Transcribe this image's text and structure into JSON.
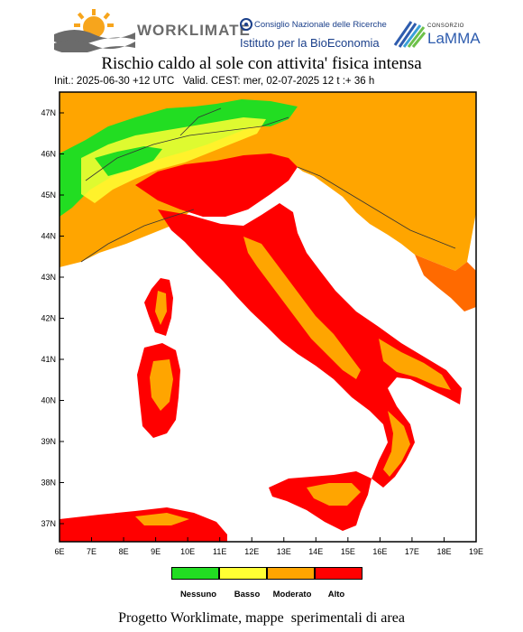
{
  "logos": {
    "worklimate": "WORKLIMATE",
    "cnr_line1": "Consiglio Nazionale delle Ricerche",
    "cnr_line2": "Istituto per la BioEconomia",
    "lamma_small": "CONSORZIO",
    "lamma_big": "LaMMA"
  },
  "header": {
    "title": "Rischio caldo al sole con attivita' fisica intensa",
    "subtitle": "Init.: 2025-06-30 +12 UTC   Valid. CEST: mer, 02-07-2025 12 t :+ 36 h"
  },
  "axes": {
    "lon_labels": [
      "6E",
      "7E",
      "8E",
      "9E",
      "10E",
      "11E",
      "12E",
      "13E",
      "14E",
      "15E",
      "16E",
      "17E",
      "18E",
      "19E"
    ],
    "lat_labels": [
      "47N",
      "46N",
      "45N",
      "44N",
      "43N",
      "42N",
      "41N",
      "40N",
      "39N",
      "38N",
      "37N"
    ]
  },
  "legend": {
    "items": [
      {
        "label": "Nessuno",
        "color": "#22dd22"
      },
      {
        "label": "Basso",
        "color": "#ffff33"
      },
      {
        "label": "Moderato",
        "color": "#ffa500"
      },
      {
        "label": "Alto",
        "color": "#ff0000"
      }
    ]
  },
  "colors": {
    "sea": "#ffffff",
    "frame": "#000000"
  },
  "footer": "Progetto Worklimate, mappe  sperimentali di area"
}
